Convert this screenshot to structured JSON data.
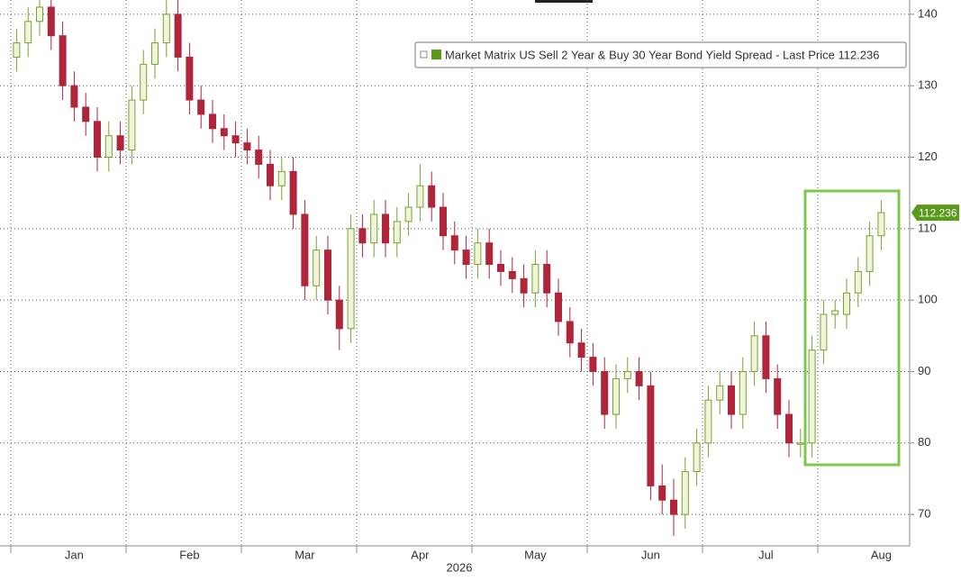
{
  "chart_data": {
    "type": "candlestick",
    "categories": [
      null,
      null,
      null,
      null,
      null,
      "Jan",
      null,
      null,
      null,
      null,
      null,
      null,
      null,
      null,
      null,
      "Feb",
      null,
      null,
      null,
      null,
      null,
      null,
      null,
      null,
      null,
      "Mar",
      null,
      null,
      null,
      null,
      null,
      null,
      null,
      null,
      null,
      "Apr",
      null,
      null,
      null,
      null,
      null,
      null,
      null,
      null,
      null,
      "May",
      null,
      null,
      null,
      null,
      null,
      null,
      null,
      null,
      null,
      "Jun",
      null,
      null,
      null,
      null,
      null,
      null,
      null,
      null,
      null,
      "Jul",
      null,
      null,
      null,
      null,
      null,
      null,
      null,
      null,
      null,
      "Aug"
    ],
    "xlabel": "2026",
    "series_name": "Market Matrix US Sell 2 Year & Buy 30 Year Bond Yield Spread - Last Price 112.236",
    "up_color": "#7aa12c",
    "down_color": "#b0253a",
    "open": [
      134,
      136,
      139,
      141,
      137,
      130,
      127,
      125,
      120,
      123,
      121,
      128,
      133,
      136,
      140,
      134,
      128,
      126,
      124,
      123,
      122,
      121,
      119,
      116,
      118,
      112,
      102,
      107,
      100,
      96,
      110,
      108,
      112,
      108,
      111,
      113,
      116,
      113,
      109,
      107,
      105,
      108,
      105,
      104,
      103,
      101,
      105,
      101,
      97,
      94,
      92,
      90,
      84,
      89,
      90,
      88,
      74,
      72,
      70,
      76,
      80,
      86,
      88,
      84,
      90,
      95,
      89,
      84,
      80,
      80,
      93,
      98,
      98,
      101,
      104,
      109
    ],
    "high": [
      138,
      141,
      143,
      143,
      139,
      132,
      129,
      127,
      125,
      125,
      130,
      135,
      138,
      142,
      142,
      136,
      130,
      128,
      126,
      125,
      124,
      123,
      121,
      120,
      120,
      114,
      109,
      109,
      102,
      112,
      112,
      114,
      114,
      113,
      115,
      119,
      118,
      115,
      111,
      109,
      110,
      110,
      107,
      106,
      105,
      107,
      107,
      103,
      99,
      96,
      94,
      92,
      91,
      92,
      92,
      90,
      77,
      75,
      78,
      82,
      88,
      90,
      90,
      92,
      97,
      97,
      91,
      86,
      82,
      95,
      100,
      100,
      103,
      106,
      111,
      114
    ],
    "low": [
      132,
      134,
      137,
      135,
      128,
      125,
      123,
      118,
      118,
      119,
      119,
      126,
      131,
      134,
      132,
      126,
      124,
      122,
      121,
      120,
      119,
      117,
      114,
      114,
      110,
      100,
      100,
      98,
      93,
      94,
      106,
      106,
      106,
      106,
      109,
      111,
      111,
      107,
      105,
      103,
      103,
      103,
      102,
      101,
      99,
      99,
      99,
      95,
      92,
      90,
      88,
      82,
      82,
      87,
      86,
      72,
      70,
      67,
      68,
      74,
      78,
      84,
      82,
      82,
      88,
      87,
      82,
      78,
      78,
      78,
      91,
      96,
      96,
      99,
      102,
      107
    ],
    "close": [
      136,
      139,
      141,
      137,
      130,
      127,
      125,
      120,
      123,
      121,
      128,
      133,
      136,
      140,
      134,
      128,
      126,
      124,
      123,
      122,
      121,
      119,
      116,
      118,
      112,
      102,
      107,
      100,
      96,
      110,
      108,
      112,
      108,
      111,
      113,
      116,
      113,
      109,
      107,
      105,
      108,
      105,
      104,
      103,
      101,
      105,
      101,
      97,
      94,
      92,
      90,
      84,
      89,
      90,
      88,
      74,
      72,
      70,
      76,
      80,
      86,
      88,
      84,
      90,
      95,
      89,
      84,
      80,
      80,
      93,
      98,
      98.5,
      101,
      104,
      109,
      112.236
    ],
    "ylim": [
      65.6,
      142
    ],
    "yticks": [
      70,
      80,
      90,
      100,
      110,
      120,
      130,
      140
    ],
    "grid": true
  }
}
